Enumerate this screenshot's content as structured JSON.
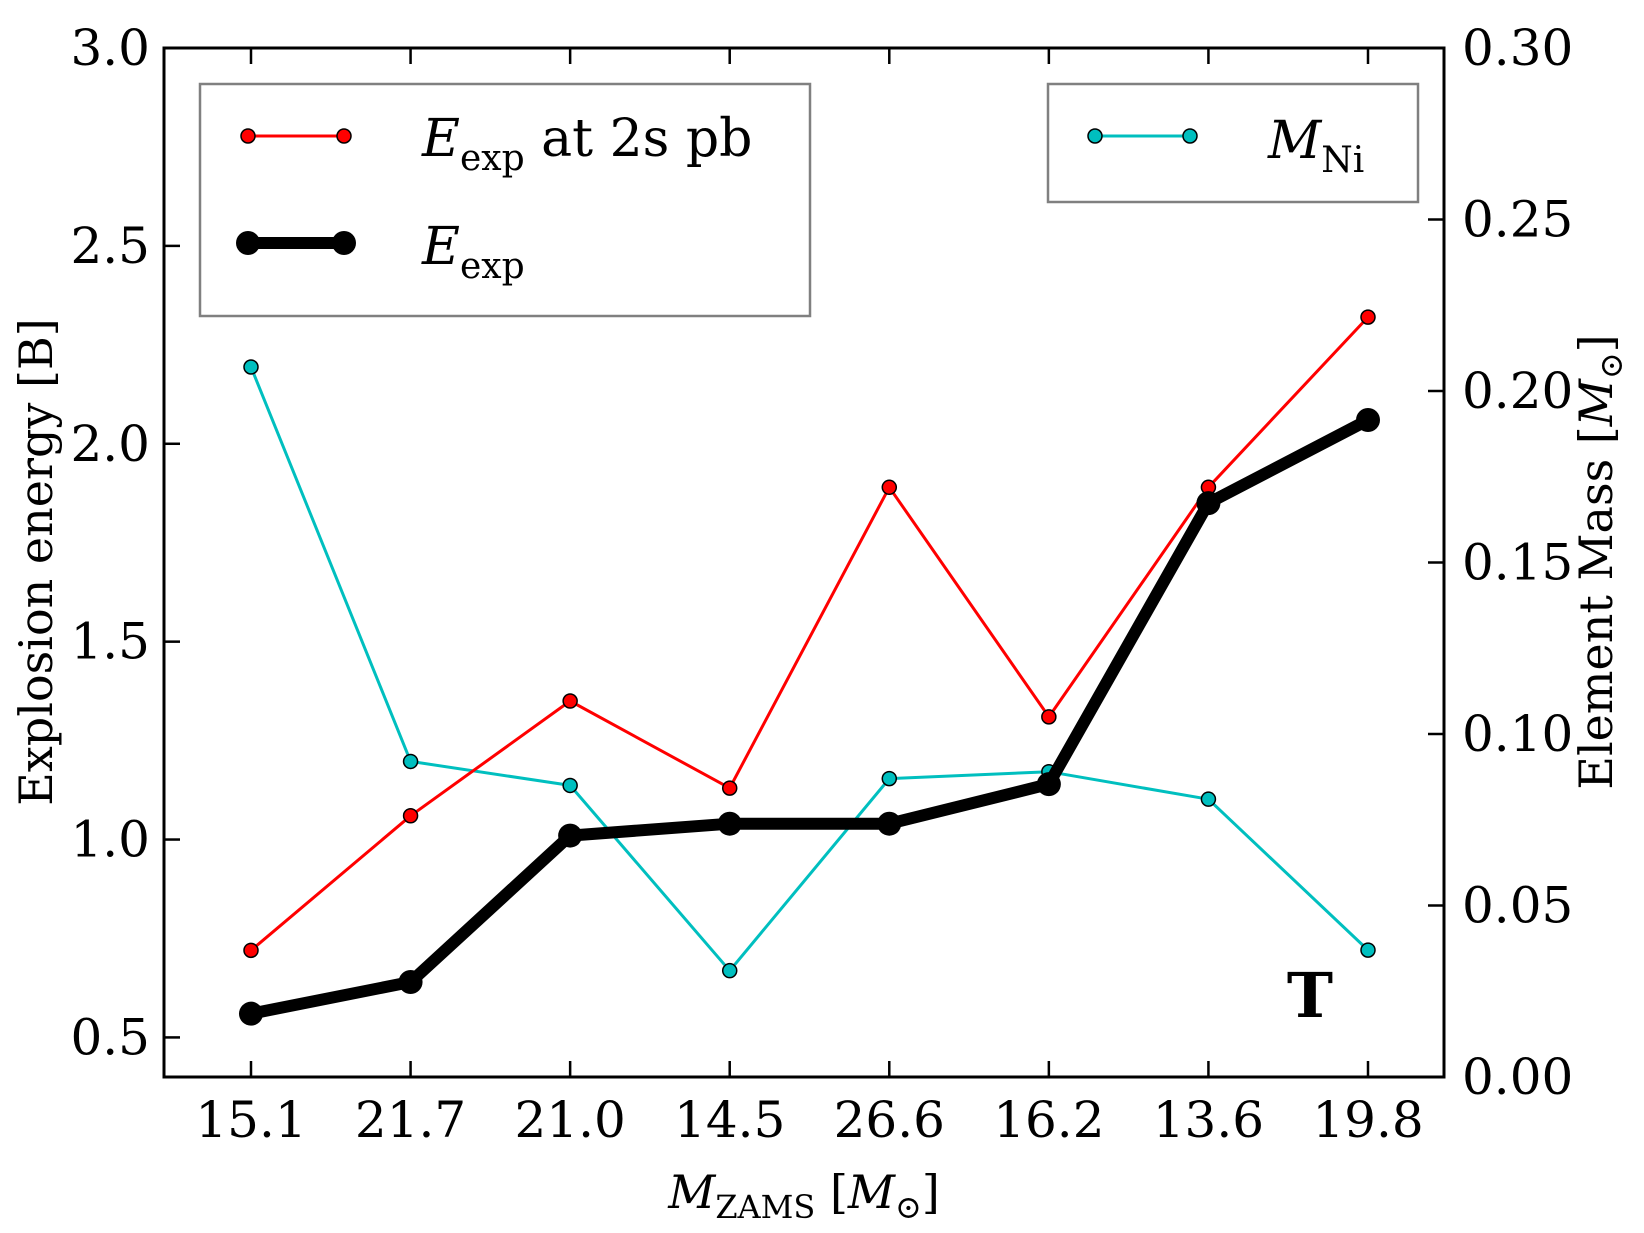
{
  "chart_data": {
    "type": "line",
    "categories": [
      "15.1",
      "21.7",
      "21.0",
      "14.5",
      "26.6",
      "16.2",
      "13.6",
      "19.8"
    ],
    "xlabel": {
      "main": "M",
      "sub": "ZAMS",
      "unit_open": " [",
      "unit_symbol": "M",
      "unit_sub": "⊙",
      "unit_close": "]"
    },
    "ylabel": "Explosion energy [B]",
    "ylabel_right": {
      "text": "Element Mass [",
      "symbol": "M",
      "sub": "⊙",
      "close": "]"
    },
    "ylim": [
      0.4,
      3.0
    ],
    "yticks": [
      "0.5",
      "1.0",
      "1.5",
      "2.0",
      "2.5",
      "3.0"
    ],
    "ylim_right": [
      0.0,
      0.3
    ],
    "yticks_right": [
      "0.00",
      "0.05",
      "0.10",
      "0.15",
      "0.20",
      "0.25",
      "0.30"
    ],
    "grid": false,
    "panel_tag": "T",
    "series": [
      {
        "name": "E_exp at 2s pb",
        "label": {
          "main": "E",
          "sub": "exp",
          "suffix": " at 2s pb"
        },
        "color": "#ff0000",
        "axis": "left",
        "values": [
          0.72,
          1.06,
          1.35,
          1.13,
          1.89,
          1.31,
          1.89,
          2.32
        ]
      },
      {
        "name": "E_exp",
        "label": {
          "main": "E",
          "sub": "exp",
          "suffix": ""
        },
        "color": "#000000",
        "axis": "left",
        "values": [
          0.56,
          0.64,
          1.01,
          1.04,
          1.04,
          1.14,
          1.85,
          2.06
        ]
      },
      {
        "name": "M_Ni",
        "label": {
          "main": "M",
          "sub": "Ni",
          "suffix": ""
        },
        "color": "#00bfbf",
        "axis": "right",
        "values": [
          0.207,
          0.092,
          0.085,
          0.031,
          0.087,
          0.089,
          0.081,
          0.037
        ]
      }
    ],
    "legends": {
      "energy": "top-left",
      "mass": "top-right"
    }
  }
}
